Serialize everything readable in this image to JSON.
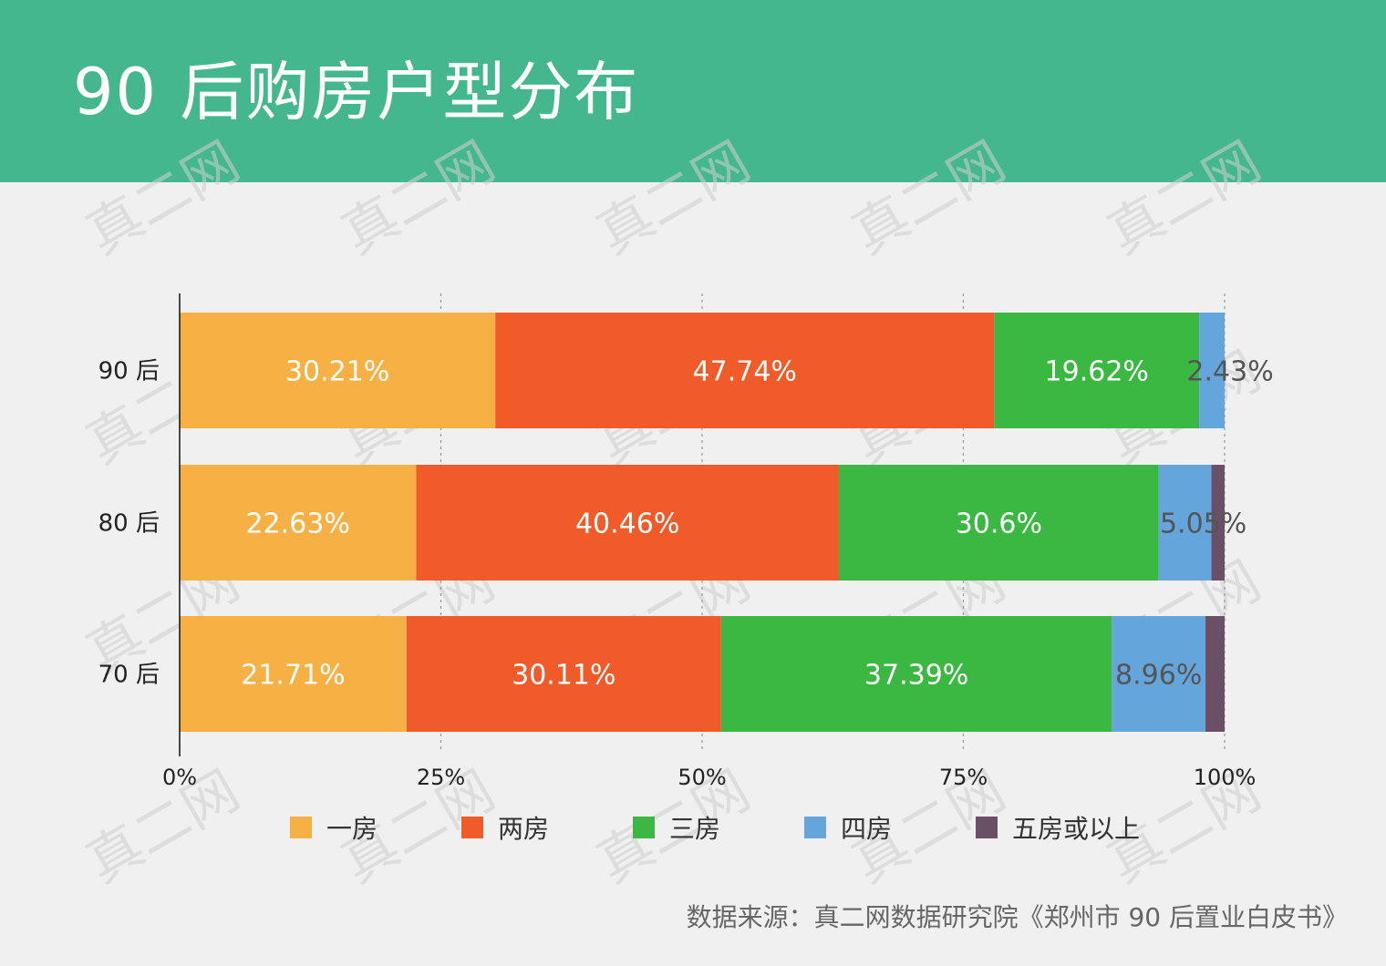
{
  "title": "90 后购房户型分布",
  "source": "数据来源：真二网数据研究院《郑州市 90 后置业白皮书》",
  "watermark": "真二网",
  "colors": {
    "header_bg": "#45b78f",
    "series": [
      "#f7b043",
      "#f15b29",
      "#3bb841",
      "#64a5dc",
      "#6b4f67"
    ]
  },
  "chart_data": {
    "type": "bar",
    "orientation": "horizontal",
    "stacked": true,
    "title": "90 后购房户型分布",
    "categories": [
      "90 后",
      "80 后",
      "70 后"
    ],
    "series": [
      {
        "name": "一房",
        "values": [
          30.21,
          22.63,
          21.71
        ]
      },
      {
        "name": "两房",
        "values": [
          47.74,
          40.46,
          30.11
        ]
      },
      {
        "name": "三房",
        "values": [
          19.62,
          30.6,
          37.39
        ]
      },
      {
        "name": "四房",
        "values": [
          2.43,
          5.05,
          8.96
        ]
      },
      {
        "name": "五房或以上",
        "values": [
          0,
          1.26,
          1.83
        ]
      }
    ],
    "data_labels": [
      [
        "30.21%",
        "47.74%",
        "19.62%",
        "2.43%",
        ""
      ],
      [
        "22.63%",
        "40.46%",
        "30.6%",
        "5.05%",
        ""
      ],
      [
        "21.71%",
        "30.11%",
        "37.39%",
        "8.96%",
        ""
      ]
    ],
    "xticks": [
      "0%",
      "25%",
      "50%",
      "75%",
      "100%"
    ],
    "xlim": [
      0,
      100
    ],
    "grid": "vertical dashed",
    "legend_position": "bottom"
  }
}
